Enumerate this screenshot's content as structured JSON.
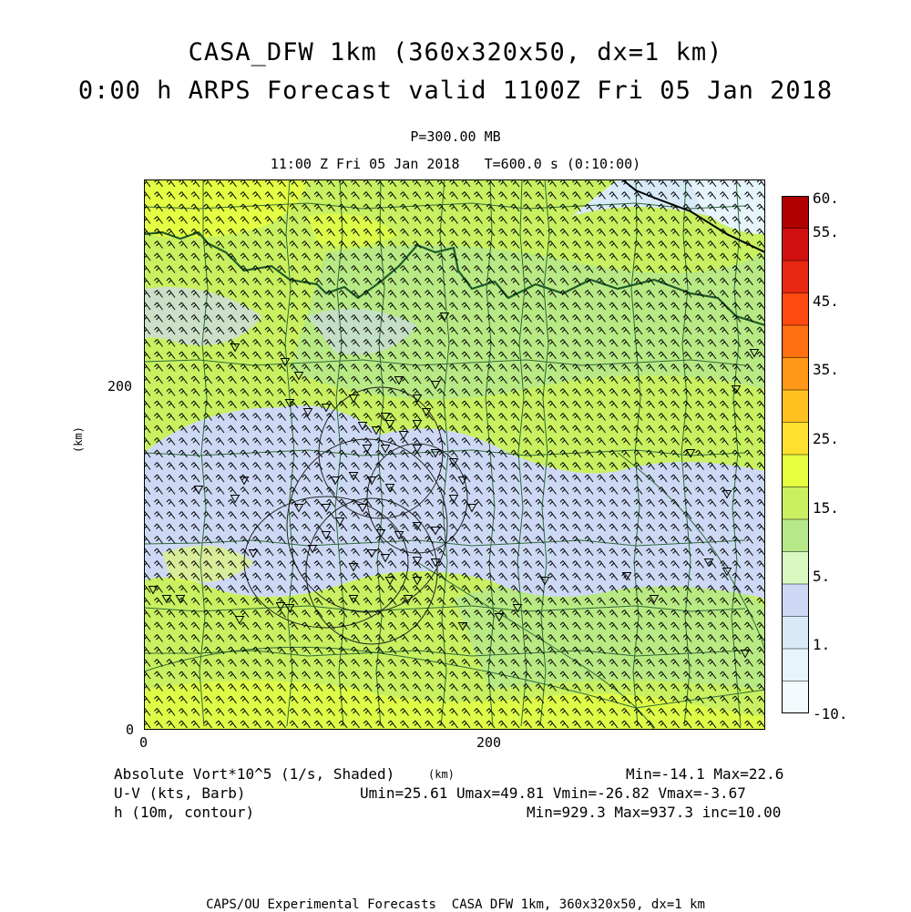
{
  "title": {
    "line1": "CASA_DFW 1km (360x320x50, dx=1 km)",
    "line2": "0:00 h ARPS Forecast valid 1100Z Fri 05 Jan 2018"
  },
  "subtitle": {
    "pressure": "P=300.00 MB",
    "time": "11:00 Z Fri 05 Jan 2018   T=600.0 s (0:10:00)"
  },
  "axes": {
    "x_ticks": [
      "0",
      "200"
    ],
    "y_ticks": [
      "0",
      "200"
    ],
    "x_label": "(km)",
    "y_label": "(km)"
  },
  "colorbar": {
    "labels": [
      "60.",
      "55.",
      "45.",
      "35.",
      "25.",
      "15.",
      "5.",
      "1.",
      "-10."
    ],
    "colors": [
      "#b00000",
      "#d01010",
      "#e82810",
      "#ff4a10",
      "#ff7010",
      "#ff9818",
      "#ffc020",
      "#ffe030",
      "#e6ff40",
      "#c8f060",
      "#b6e88a",
      "#d8f8c0",
      "#cdd9f4",
      "#d8eaf8",
      "#e6f4fb",
      "#f2fafd"
    ]
  },
  "legend": {
    "field1": "Absolute Vort*10^5 (1/s, Shaded)",
    "field1_stats": "Min=-14.1 Max=22.6",
    "field2": "U-V (kts, Barb)",
    "field2_stats": "Umin=25.61 Umax=49.81 Vmin=-26.82 Vmax=-3.67",
    "field3": "h (10m, contour)",
    "field3_stats": "Min=929.3 Max=937.3 inc=10.00"
  },
  "footer": "CAPS/OU Experimental Forecasts  CASA DFW 1km, 360x320x50, dx=1 km",
  "colors": {
    "land_green": "#c8f060",
    "light_green": "#b6e88a",
    "blue_shade": "#cdd9f4",
    "yellow_shade": "#e6ff40",
    "boundary_green": "#1f5a28",
    "county_green": "#2f6a3a",
    "barb": "#000000"
  }
}
